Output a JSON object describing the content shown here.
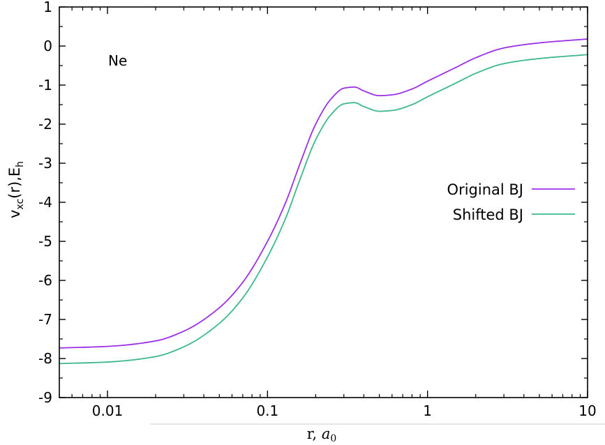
{
  "chart_data": {
    "type": "line",
    "annotation": "Ne",
    "x_scale": "log",
    "xlim": [
      0.005,
      10
    ],
    "ylim": [
      -9,
      1
    ],
    "x_ticks": [
      {
        "value": 0.01,
        "label": "0.01"
      },
      {
        "value": 0.1,
        "label": "0.1"
      },
      {
        "value": 1,
        "label": "1"
      },
      {
        "value": 10,
        "label": "10"
      }
    ],
    "y_ticks": [
      {
        "value": 1,
        "label": "1"
      },
      {
        "value": 0,
        "label": "0"
      },
      {
        "value": -1,
        "label": "-1"
      },
      {
        "value": -2,
        "label": "-2"
      },
      {
        "value": -3,
        "label": "-3"
      },
      {
        "value": -4,
        "label": "-4"
      },
      {
        "value": -5,
        "label": "-5"
      },
      {
        "value": -6,
        "label": "-6"
      },
      {
        "value": -7,
        "label": "-7"
      },
      {
        "value": -8,
        "label": "-8"
      },
      {
        "value": -9,
        "label": "-9"
      }
    ],
    "xlabel": {
      "main": "r, ",
      "italic": "a",
      "sub": "0"
    },
    "ylabel": {
      "v": "v",
      "sub1": "xc",
      "mid": "(r),E",
      "sub2": "h"
    },
    "grid": false,
    "legend_position": "right",
    "series": [
      {
        "name": "Original BJ",
        "color": "#9b30e8",
        "x": [
          0.005,
          0.01,
          0.02,
          0.03,
          0.05,
          0.07,
          0.1,
          0.13,
          0.16,
          0.2,
          0.25,
          0.3,
          0.35,
          0.4,
          0.5,
          0.6,
          0.8,
          1,
          1.5,
          2,
          3,
          5,
          10
        ],
        "y": [
          -7.73,
          -7.69,
          -7.55,
          -7.3,
          -6.7,
          -6.05,
          -5.0,
          -4.0,
          -3.0,
          -2.0,
          -1.35,
          -1.08,
          -1.05,
          -1.15,
          -1.27,
          -1.25,
          -1.1,
          -0.9,
          -0.55,
          -0.3,
          -0.05,
          0.08,
          0.18
        ]
      },
      {
        "name": "Shifted BJ",
        "color": "#3cb88c",
        "x": [
          0.005,
          0.01,
          0.02,
          0.03,
          0.05,
          0.07,
          0.1,
          0.13,
          0.16,
          0.2,
          0.25,
          0.3,
          0.35,
          0.4,
          0.5,
          0.6,
          0.8,
          1,
          1.5,
          2,
          3,
          5,
          10
        ],
        "y": [
          -8.13,
          -8.09,
          -7.95,
          -7.7,
          -7.1,
          -6.45,
          -5.4,
          -4.4,
          -3.4,
          -2.4,
          -1.75,
          -1.48,
          -1.45,
          -1.55,
          -1.67,
          -1.65,
          -1.5,
          -1.3,
          -0.95,
          -0.7,
          -0.45,
          -0.32,
          -0.22
        ]
      }
    ]
  }
}
